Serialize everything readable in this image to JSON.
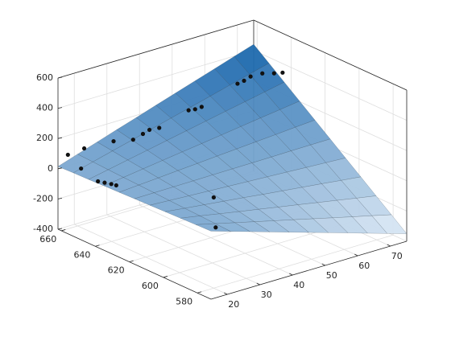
{
  "chart_data": {
    "type": "surface3d",
    "x": [
      15,
      21,
      27,
      33,
      39,
      45,
      51,
      57,
      63,
      69,
      75
    ],
    "y": [
      572,
      581,
      590,
      599,
      608,
      617,
      626,
      635,
      644,
      653,
      662
    ],
    "z": [
      [
        50,
        10,
        -30,
        -70,
        -110,
        -150,
        -190,
        -230,
        -270,
        -310,
        -350
      ],
      [
        47,
        15,
        -17,
        -49,
        -81,
        -112,
        -144,
        -176,
        -208,
        -239,
        -271
      ],
      [
        43,
        20,
        -4,
        -28,
        -51,
        -75,
        -98,
        -122,
        -145,
        -169,
        -192
      ],
      [
        40,
        24,
        9,
        -6,
        -21,
        -37,
        -52,
        -67,
        -82,
        -98,
        -113
      ],
      [
        36,
        29,
        22,
        15,
        8,
        1,
        -6,
        -13,
        -20,
        -27,
        -34
      ],
      [
        33,
        34,
        35,
        36,
        38,
        39,
        40,
        41,
        43,
        44,
        45
      ],
      [
        29,
        39,
        48,
        58,
        67,
        77,
        86,
        96,
        105,
        115,
        124
      ],
      [
        26,
        43,
        61,
        79,
        97,
        114,
        132,
        150,
        168,
        185,
        203
      ],
      [
        22,
        48,
        74,
        100,
        126,
        152,
        178,
        204,
        230,
        256,
        282
      ],
      [
        19,
        53,
        87,
        121,
        156,
        190,
        224,
        258,
        293,
        327,
        361
      ],
      [
        15,
        58,
        100,
        143,
        185,
        228,
        270,
        313,
        355,
        398,
        440
      ]
    ],
    "colormap": [
      "#e4eef8",
      "#0f5fa8"
    ],
    "edge_color": "#1e2a36",
    "scatter": {
      "color": "#111111",
      "x": [
        17,
        20,
        22,
        21,
        22,
        23,
        24,
        31,
        37,
        40,
        42,
        45,
        54,
        56,
        58,
        69,
        71,
        73,
        74,
        75,
        75,
        20,
        18
      ],
      "y": [
        660,
        658,
        660,
        650,
        648,
        646,
        645,
        660,
        660,
        660,
        660,
        660,
        660,
        660,
        660,
        660,
        660,
        660,
        655,
        650,
        645,
        580,
        575
      ],
      "z": [
        90,
        -10,
        100,
        -60,
        -65,
        -70,
        -80,
        90,
        62,
        81,
        95,
        89,
        148,
        142,
        145,
        228,
        235,
        250,
        290,
        310,
        340,
        200,
        40
      ]
    },
    "xlim": [
      15,
      75
    ],
    "ylim": [
      572,
      662
    ],
    "zlim": [
      -400,
      600
    ],
    "xticks": [
      20,
      30,
      40,
      50,
      60,
      70
    ],
    "yticks": [
      580,
      600,
      620,
      640,
      660
    ],
    "zticks": [
      -400,
      -200,
      0,
      200,
      400,
      600
    ],
    "grid": true
  }
}
